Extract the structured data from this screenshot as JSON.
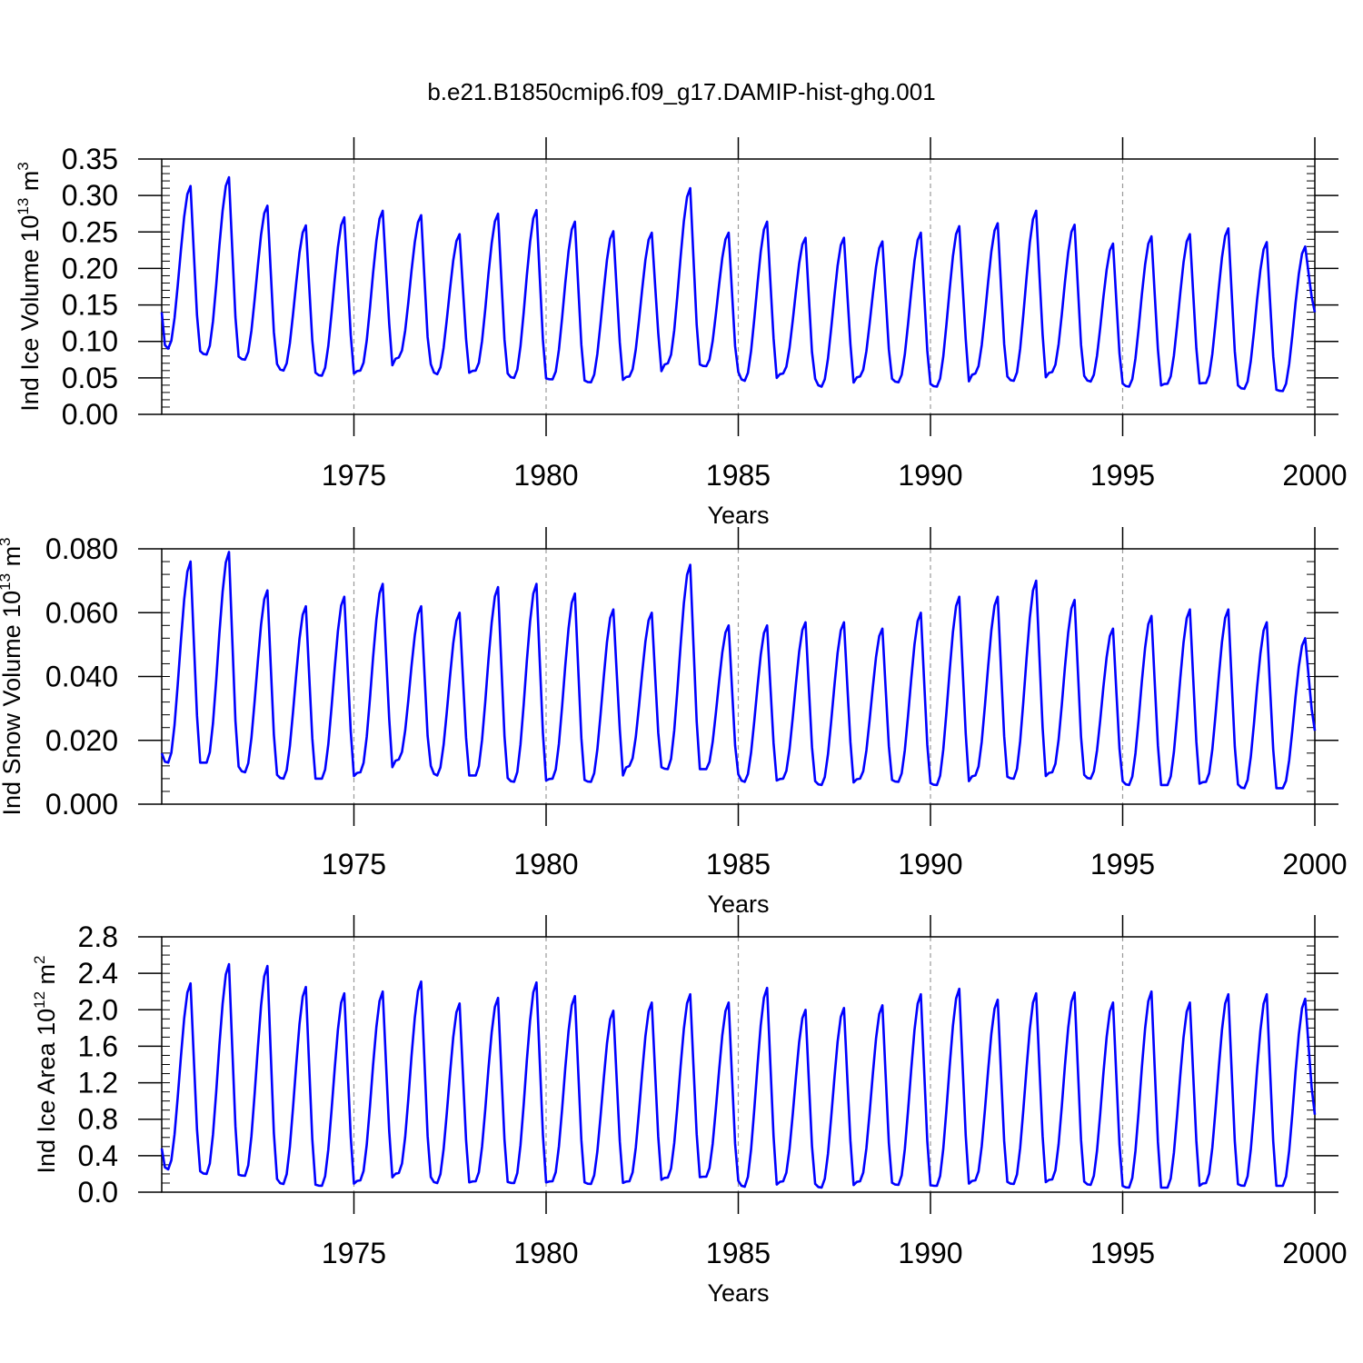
{
  "title": "b.e21.B1850cmip6.f09_g17.DAMIP-hist-ghg.001",
  "line_color": "#0000ff",
  "chart_data": [
    {
      "type": "line",
      "series_name": "Ind Ice Volume",
      "ylabel": "Ind Ice Volume 10",
      "ylabel_exp": "13",
      "ylabel_unit": " m",
      "ylabel_unit_exp": "3",
      "xlabel": "Years",
      "xlim": [
        1970.0,
        2000.0
      ],
      "ylim": [
        0.0,
        0.35
      ],
      "x_ticks": [
        1975,
        1980,
        1985,
        1990,
        1995,
        2000
      ],
      "x_tick_labels": [
        "1975",
        "1980",
        "1985",
        "1990",
        "1995",
        "2000"
      ],
      "y_ticks": [
        0.0,
        0.05,
        0.1,
        0.15,
        0.2,
        0.25,
        0.3,
        0.35
      ],
      "y_tick_labels": [
        "0.00",
        "0.05",
        "0.10",
        "0.15",
        "0.20",
        "0.25",
        "0.30",
        "0.35"
      ],
      "y_minor_step": 0.01,
      "grid": "dashed vertical lines at major x ticks",
      "peaks": [
        0.313,
        0.325,
        0.286,
        0.259,
        0.27,
        0.279,
        0.273,
        0.247,
        0.275,
        0.28,
        0.264,
        0.251,
        0.249,
        0.31,
        0.249,
        0.264,
        0.242,
        0.242,
        0.237,
        0.249,
        0.258,
        0.262,
        0.279,
        0.26,
        0.234,
        0.244,
        0.247,
        0.255,
        0.236,
        0.23
      ],
      "troughs": [
        0.09,
        0.082,
        0.075,
        0.06,
        0.053,
        0.06,
        0.078,
        0.055,
        0.06,
        0.05,
        0.048,
        0.044,
        0.052,
        0.07,
        0.066,
        0.046,
        0.056,
        0.038,
        0.052,
        0.044,
        0.038,
        0.056,
        0.046,
        0.058,
        0.045,
        0.038,
        0.042,
        0.043,
        0.035,
        0.032
      ],
      "start_value": 0.14,
      "end_value": 0.14
    },
    {
      "type": "line",
      "series_name": "Ind Snow Volume",
      "ylabel": "Ind Snow Volume 10",
      "ylabel_exp": "13",
      "ylabel_unit": " m",
      "ylabel_unit_exp": "3",
      "xlabel": "Years",
      "xlim": [
        1970.0,
        2000.0
      ],
      "ylim": [
        0.0,
        0.08
      ],
      "x_ticks": [
        1975,
        1980,
        1985,
        1990,
        1995,
        2000
      ],
      "x_tick_labels": [
        "1975",
        "1980",
        "1985",
        "1990",
        "1995",
        "2000"
      ],
      "y_ticks": [
        0.0,
        0.02,
        0.04,
        0.06,
        0.08
      ],
      "y_tick_labels": [
        "0.000",
        "0.020",
        "0.040",
        "0.060",
        "0.080"
      ],
      "y_minor_step": 0.004,
      "grid": "dashed vertical lines at major x ticks",
      "peaks": [
        0.076,
        0.079,
        0.067,
        0.062,
        0.065,
        0.069,
        0.062,
        0.06,
        0.068,
        0.069,
        0.066,
        0.061,
        0.06,
        0.075,
        0.056,
        0.056,
        0.057,
        0.057,
        0.055,
        0.06,
        0.065,
        0.065,
        0.07,
        0.064,
        0.055,
        0.059,
        0.061,
        0.061,
        0.057,
        0.052
      ],
      "troughs": [
        0.013,
        0.013,
        0.01,
        0.008,
        0.008,
        0.01,
        0.014,
        0.009,
        0.009,
        0.007,
        0.008,
        0.007,
        0.012,
        0.011,
        0.011,
        0.007,
        0.008,
        0.006,
        0.008,
        0.007,
        0.006,
        0.009,
        0.008,
        0.01,
        0.008,
        0.006,
        0.006,
        0.007,
        0.005,
        0.005
      ],
      "start_value": 0.016,
      "end_value": 0.023
    },
    {
      "type": "line",
      "series_name": "Ind Ice Area",
      "ylabel": "Ind Ice Area 10",
      "ylabel_exp": "12",
      "ylabel_unit": " m",
      "ylabel_unit_exp": "2",
      "xlabel": "Years",
      "xlim": [
        1970.0,
        2000.0
      ],
      "ylim": [
        0.0,
        2.8
      ],
      "x_ticks": [
        1975,
        1980,
        1985,
        1990,
        1995,
        2000
      ],
      "x_tick_labels": [
        "1975",
        "1980",
        "1985",
        "1990",
        "1995",
        "2000"
      ],
      "y_ticks": [
        0.0,
        0.4,
        0.8,
        1.2,
        1.6,
        2.0,
        2.4,
        2.8
      ],
      "y_tick_labels": [
        "0.0",
        "0.4",
        "0.8",
        "1.2",
        "1.6",
        "2.0",
        "2.4",
        "2.8"
      ],
      "y_minor_step": 0.1,
      "grid": "dashed vertical lines at major x ticks",
      "peaks": [
        2.29,
        2.5,
        2.48,
        2.25,
        2.18,
        2.2,
        2.31,
        2.07,
        2.13,
        2.3,
        2.15,
        1.99,
        2.08,
        2.17,
        2.08,
        2.24,
        2.0,
        2.02,
        2.05,
        2.17,
        2.23,
        2.11,
        2.18,
        2.19,
        2.08,
        2.2,
        2.08,
        2.17,
        2.17,
        2.12
      ],
      "troughs": [
        0.25,
        0.2,
        0.18,
        0.09,
        0.07,
        0.13,
        0.21,
        0.1,
        0.12,
        0.1,
        0.12,
        0.09,
        0.12,
        0.16,
        0.17,
        0.06,
        0.12,
        0.05,
        0.12,
        0.08,
        0.07,
        0.13,
        0.09,
        0.14,
        0.08,
        0.05,
        0.05,
        0.1,
        0.07,
        0.07
      ],
      "start_value": 0.48,
      "end_value": 0.85
    }
  ]
}
